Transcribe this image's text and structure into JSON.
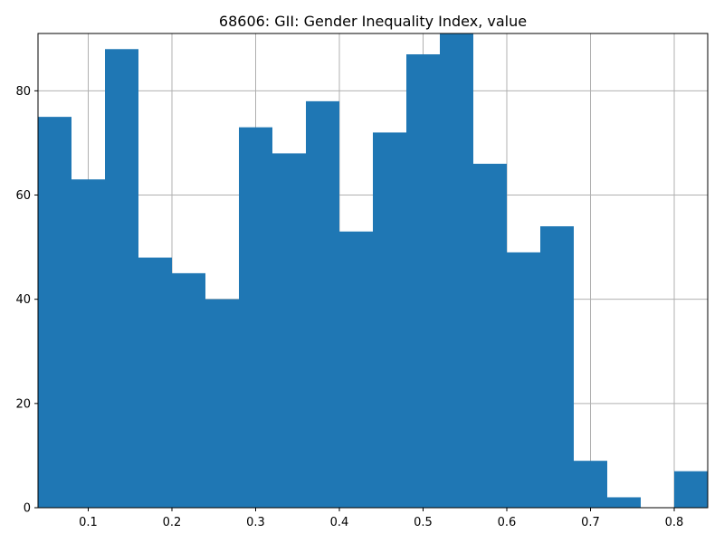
{
  "chart_data": {
    "type": "bar",
    "title": "68606: GII: Gender Inequality Index, value",
    "xlabel": "",
    "ylabel": "",
    "bin_edges": [
      0.04,
      0.08,
      0.12,
      0.16,
      0.2,
      0.24,
      0.28,
      0.32,
      0.36,
      0.4,
      0.44,
      0.48,
      0.52,
      0.56,
      0.6,
      0.64,
      0.68,
      0.72,
      0.76,
      0.8,
      0.84
    ],
    "counts": [
      75,
      63,
      88,
      48,
      45,
      40,
      73,
      68,
      78,
      53,
      72,
      87,
      91,
      66,
      49,
      54,
      9,
      2,
      0,
      7
    ],
    "xlim": [
      0.04,
      0.84
    ],
    "ylim": [
      0,
      91
    ],
    "x_ticks": [
      {
        "value": 0.1,
        "label": "0.1"
      },
      {
        "value": 0.2,
        "label": "0.2"
      },
      {
        "value": 0.3,
        "label": "0.3"
      },
      {
        "value": 0.4,
        "label": "0.4"
      },
      {
        "value": 0.5,
        "label": "0.5"
      },
      {
        "value": 0.6,
        "label": "0.6"
      },
      {
        "value": 0.7,
        "label": "0.7"
      },
      {
        "value": 0.8,
        "label": "0.8"
      }
    ],
    "y_ticks": [
      {
        "value": 0,
        "label": "0"
      },
      {
        "value": 20,
        "label": "20"
      },
      {
        "value": 40,
        "label": "40"
      },
      {
        "value": 60,
        "label": "60"
      },
      {
        "value": 80,
        "label": "80"
      }
    ],
    "grid": true,
    "bar_color": "#1f77b4",
    "grid_color": "#b0b0b0"
  }
}
